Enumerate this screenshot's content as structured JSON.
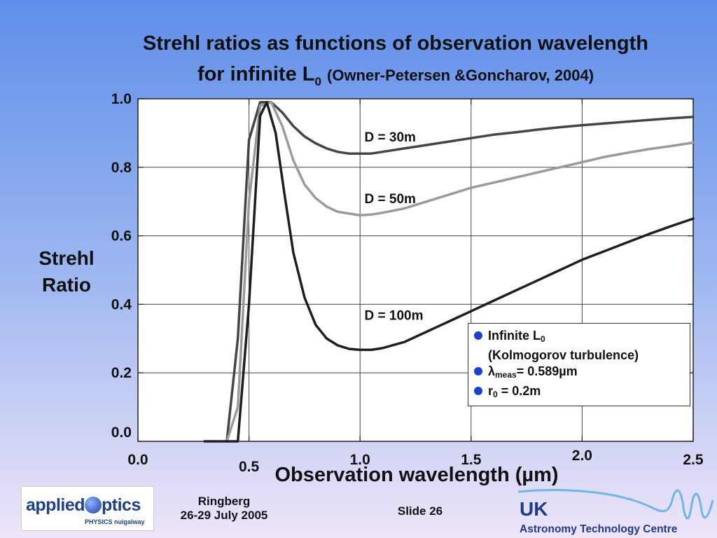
{
  "title": {
    "line1": "Strehl ratios as functions of observation wavelength",
    "line2_main": "for infinite L",
    "line2_sub": "0",
    "citation": "(Owner-Petersen &Goncharov, 2004)"
  },
  "chart_data": {
    "type": "line",
    "xlabel": "Observation wavelength (µm)",
    "ylabel": "Strehl Ratio",
    "xlim": [
      0.0,
      2.5
    ],
    "ylim": [
      0.0,
      1.0
    ],
    "x_tick_labels": [
      "0.0",
      "0.5",
      "1.0",
      "1.5",
      "2.0",
      "2.5"
    ],
    "y_tick_labels": [
      "0.0",
      "0.2",
      "0.4",
      "0.6",
      "0.8",
      "1.0"
    ],
    "grid": true,
    "series": [
      {
        "name": "D = 30m",
        "color": "#444444",
        "x": [
          0.4,
          0.45,
          0.5,
          0.55,
          0.6,
          0.65,
          0.7,
          0.75,
          0.8,
          0.85,
          0.9,
          0.95,
          1.0,
          1.05,
          1.1,
          1.2,
          1.3,
          1.4,
          1.5,
          1.6,
          1.7,
          1.8,
          1.9,
          2.0,
          2.1,
          2.2,
          2.3,
          2.4,
          2.5
        ],
        "y": [
          0.0,
          0.3,
          0.88,
          0.99,
          0.99,
          0.96,
          0.92,
          0.89,
          0.87,
          0.855,
          0.845,
          0.84,
          0.84,
          0.84,
          0.845,
          0.855,
          0.865,
          0.875,
          0.885,
          0.895,
          0.902,
          0.91,
          0.917,
          0.923,
          0.928,
          0.933,
          0.938,
          0.943,
          0.947
        ]
      },
      {
        "name": "D = 50m",
        "color": "#9a9a9a",
        "x": [
          0.4,
          0.45,
          0.5,
          0.55,
          0.6,
          0.65,
          0.7,
          0.75,
          0.8,
          0.85,
          0.9,
          0.95,
          1.0,
          1.05,
          1.1,
          1.2,
          1.3,
          1.4,
          1.5,
          1.6,
          1.7,
          1.8,
          1.9,
          2.0,
          2.1,
          2.2,
          2.3,
          2.4,
          2.5
        ],
        "y": [
          0.0,
          0.1,
          0.7,
          0.98,
          0.99,
          0.92,
          0.82,
          0.75,
          0.71,
          0.685,
          0.67,
          0.665,
          0.66,
          0.662,
          0.667,
          0.68,
          0.7,
          0.72,
          0.74,
          0.755,
          0.77,
          0.785,
          0.8,
          0.815,
          0.83,
          0.842,
          0.853,
          0.862,
          0.872
        ]
      },
      {
        "name": "D = 100m",
        "color": "#1e1e1e",
        "x": [
          0.3,
          0.35,
          0.4,
          0.45,
          0.5,
          0.55,
          0.58,
          0.62,
          0.66,
          0.7,
          0.75,
          0.8,
          0.85,
          0.9,
          0.95,
          1.0,
          1.05,
          1.1,
          1.2,
          1.3,
          1.4,
          1.5,
          1.6,
          1.7,
          1.8,
          1.9,
          2.0,
          2.1,
          2.2,
          2.3,
          2.4,
          2.5
        ],
        "y": [
          0.0,
          0.0,
          0.0,
          0.0,
          0.4,
          0.95,
          0.99,
          0.9,
          0.72,
          0.55,
          0.42,
          0.34,
          0.3,
          0.28,
          0.27,
          0.267,
          0.267,
          0.272,
          0.29,
          0.32,
          0.35,
          0.38,
          0.41,
          0.44,
          0.47,
          0.5,
          0.53,
          0.555,
          0.58,
          0.605,
          0.628,
          0.65
        ]
      }
    ]
  },
  "curve_labels": {
    "d30": "D = 30m",
    "d50": "D = 50m",
    "d100": "D = 100m"
  },
  "legend": {
    "item1_main": "Infinite L",
    "item1_sub": "0",
    "item1_line2": "(Kolmogorov turbulence)",
    "item2_main": "λ",
    "item2_sub": "meas",
    "item2_rest": "= 0.589µm",
    "item3_main": "r",
    "item3_sub": "0",
    "item3_rest": " = 0.2m",
    "dot_color": "#1840d6"
  },
  "footer": {
    "logo_text_part1": "applied",
    "logo_text_part2": "ptics",
    "logo_subtext": "PHYSICS nuigalway",
    "venue": "Ringberg",
    "dates": "26-29 July 2005",
    "slide": "Slide 26",
    "uk_logo_line1": "UK",
    "uk_logo_line2": "Astronomy Technology Centre"
  }
}
